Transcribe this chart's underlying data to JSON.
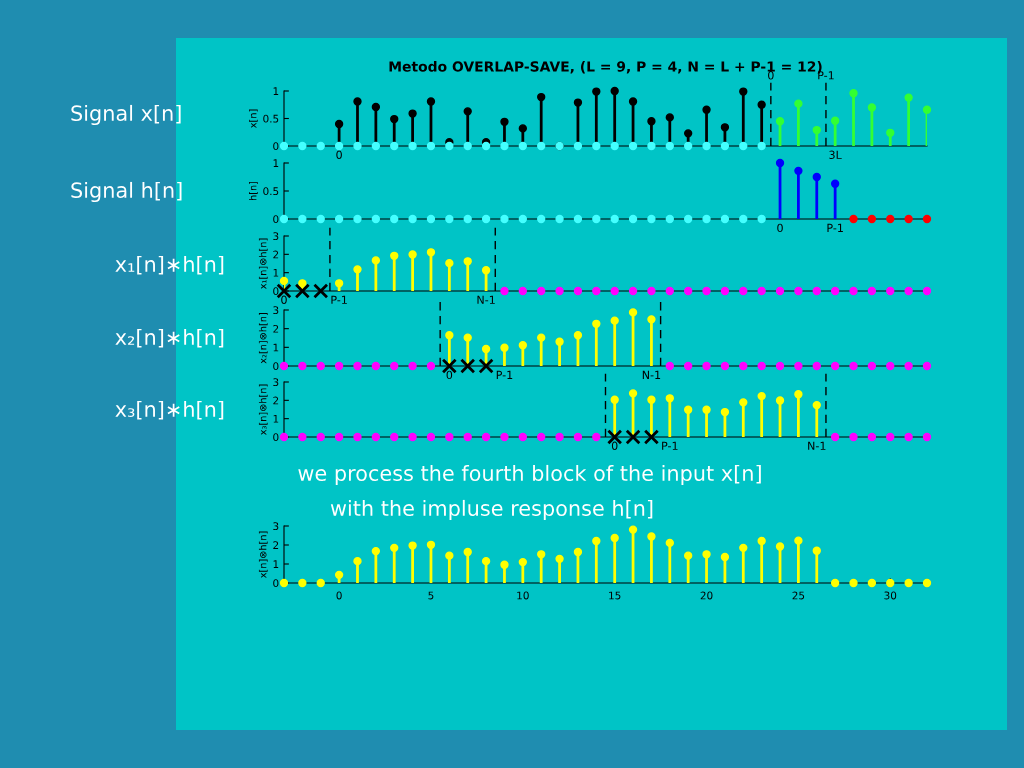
{
  "chart_data": [
    {
      "type": "lollipop",
      "title": "Metodo OVERLAP-SAVE, (L = 9, P = 4, N = L + P-1 = 12)",
      "ylabel": "x[n]",
      "xlim": [
        -3,
        32
      ],
      "ylim": [
        0,
        1
      ],
      "yticks": [
        0,
        0.5,
        1
      ],
      "tick_labels": "y",
      "marker": "circle",
      "series": [
        {
          "color": "#000000",
          "x": [
            0,
            1,
            2,
            3,
            4,
            5,
            6,
            7,
            8,
            9,
            10,
            11,
            12,
            13,
            14,
            15,
            16,
            17,
            18,
            19,
            20,
            21,
            22,
            23
          ],
          "values": [
            0.4,
            0.81,
            0.71,
            0.49,
            0.59,
            0.81,
            0.07,
            0.63,
            0.07,
            0.44,
            0.32,
            0.89,
            0,
            0.79,
            0.99,
            1.0,
            0.81,
            0.45,
            0.52,
            0.23,
            0.66,
            0.34,
            0.99,
            0.75
          ]
        },
        {
          "color": "#33ff33",
          "x": [
            24,
            25,
            26,
            27,
            28,
            29,
            30,
            31,
            32
          ],
          "values": [
            0.45,
            0.77,
            0.29,
            0.46,
            0.96,
            0.7,
            0.24,
            0.88,
            0.66
          ]
        },
        {
          "color": "#44ffff",
          "x": [
            -3,
            -2,
            -1,
            0,
            1,
            2,
            3,
            4,
            5,
            6,
            7,
            8,
            9,
            10,
            11,
            12,
            13,
            14,
            15,
            16,
            17,
            18,
            19,
            20,
            21,
            22,
            23
          ],
          "values": [
            0,
            0,
            0,
            0,
            0,
            0,
            0,
            0,
            0,
            0,
            0,
            0,
            0,
            0,
            0,
            0,
            0,
            0,
            0,
            0,
            0,
            0,
            0,
            0,
            0,
            0,
            0
          ]
        }
      ],
      "ref_lines": [
        {
          "axis": "x",
          "value": 23.5,
          "color": "#000000",
          "line_style": "dashed"
        },
        {
          "axis": "x",
          "value": 26.5,
          "color": "#000000",
          "line_style": "dashed"
        }
      ],
      "annotations": [
        "Signal x[n]",
        "0",
        "P-1",
        "0",
        "3L"
      ]
    },
    {
      "type": "lollipop",
      "ylabel": "h[n]",
      "xlim": [
        -3,
        32
      ],
      "ylim": [
        0,
        1
      ],
      "yticks": [
        0,
        0.5,
        1
      ],
      "tick_labels": "y",
      "marker": "circle",
      "series": [
        {
          "color": "#44ffff",
          "x": [
            -3,
            -2,
            -1,
            0,
            1,
            2,
            3,
            4,
            5,
            6,
            7,
            8,
            9,
            10,
            11,
            12,
            13,
            14,
            15,
            16,
            17,
            18,
            19,
            20,
            21,
            22,
            23
          ],
          "values": [
            0,
            0,
            0,
            0,
            0,
            0,
            0,
            0,
            0,
            0,
            0,
            0,
            0,
            0,
            0,
            0,
            0,
            0,
            0,
            0,
            0,
            0,
            0,
            0,
            0,
            0,
            0
          ]
        },
        {
          "color": "#0000ff",
          "x": [
            24,
            25,
            26,
            27
          ],
          "values": [
            1.0,
            0.86,
            0.75,
            0.63
          ]
        },
        {
          "color": "#ff0000",
          "x": [
            28,
            29,
            30,
            31,
            32
          ],
          "values": [
            0,
            0,
            0,
            0,
            0
          ]
        }
      ],
      "annotations": [
        "Signal h[n]",
        "0",
        "P-1"
      ]
    },
    {
      "type": "lollipop",
      "ylabel": "x₁[n]⊗h[n]",
      "xlim": [
        -3,
        32
      ],
      "ylim": [
        0,
        3
      ],
      "yticks": [
        0,
        1,
        2,
        3
      ],
      "tick_labels": "y",
      "marker": "circle",
      "series": [
        {
          "color": "#ffff00",
          "x": [
            -3,
            -2,
            0,
            1,
            2,
            3,
            4,
            5,
            6,
            7,
            8
          ],
          "values": [
            0.55,
            0.42,
            0.42,
            1.18,
            1.67,
            1.92,
            1.99,
            2.11,
            1.52,
            1.62,
            1.13
          ]
        },
        {
          "color": "#ff00ff",
          "x": [
            9,
            10,
            11,
            12,
            13,
            14,
            15,
            16,
            17,
            18,
            19,
            20,
            21,
            22,
            23,
            24,
            25,
            26,
            27,
            28,
            29,
            30,
            31,
            32
          ],
          "values": [
            0,
            0,
            0,
            0,
            0,
            0,
            0,
            0,
            0,
            0,
            0,
            0,
            0,
            0,
            0,
            0,
            0,
            0,
            0,
            0,
            0,
            0,
            0,
            0
          ]
        },
        {
          "type": "scatter",
          "marker": "cross",
          "color": "#000000",
          "x": [
            -3,
            -2,
            -1
          ],
          "values": [
            0,
            0,
            0
          ]
        }
      ],
      "ref_lines": [
        {
          "axis": "x",
          "value": -0.5,
          "color": "#000000",
          "line_style": "dashed"
        },
        {
          "axis": "x",
          "value": 8.5,
          "color": "#000000",
          "line_style": "dashed"
        }
      ],
      "annotations": [
        "x₁[n]∗h[n]",
        "0",
        "P-1",
        "N-1"
      ]
    },
    {
      "type": "lollipop",
      "ylabel": "x₂[n]⊗h[n]",
      "xlim": [
        -3,
        32
      ],
      "ylim": [
        0,
        3
      ],
      "yticks": [
        0,
        1,
        2,
        3
      ],
      "tick_labels": "y",
      "marker": "circle",
      "series": [
        {
          "color": "#ffff00",
          "x": [
            6,
            7,
            8,
            9,
            10,
            11,
            12,
            13,
            14,
            15,
            16,
            17
          ],
          "values": [
            1.65,
            1.52,
            0.91,
            0.98,
            1.11,
            1.52,
            1.3,
            1.65,
            2.26,
            2.43,
            2.87,
            2.5
          ]
        },
        {
          "color": "#ff00ff",
          "x": [
            -3,
            -2,
            -1,
            0,
            1,
            2,
            3,
            4,
            5,
            18,
            19,
            20,
            21,
            22,
            23,
            24,
            25,
            26,
            27,
            28,
            29,
            30,
            31,
            32
          ],
          "values": [
            0,
            0,
            0,
            0,
            0,
            0,
            0,
            0,
            0,
            0,
            0,
            0,
            0,
            0,
            0,
            0,
            0,
            0,
            0,
            0,
            0,
            0,
            0,
            0
          ]
        },
        {
          "type": "scatter",
          "marker": "cross",
          "color": "#000000",
          "x": [
            6,
            7,
            8
          ],
          "values": [
            0,
            0,
            0
          ]
        }
      ],
      "ref_lines": [
        {
          "axis": "x",
          "value": 5.5,
          "color": "#000000",
          "line_style": "dashed"
        },
        {
          "axis": "x",
          "value": 17.5,
          "color": "#000000",
          "line_style": "dashed"
        }
      ],
      "annotations": [
        "x₂[n]∗h[n]",
        "0",
        "P-1",
        "N-1"
      ]
    },
    {
      "type": "lollipop",
      "ylabel": "x₃[n]⊗h[n]",
      "xlim": [
        -3,
        32
      ],
      "ylim": [
        0,
        3
      ],
      "yticks": [
        0,
        1,
        2,
        3
      ],
      "tick_labels": "y",
      "marker": "circle",
      "series": [
        {
          "color": "#ffff00",
          "x": [
            15,
            16,
            17,
            18,
            19,
            20,
            21,
            22,
            23,
            24,
            25,
            26
          ],
          "values": [
            2.03,
            2.38,
            2.03,
            2.11,
            1.49,
            1.49,
            1.36,
            1.89,
            2.23,
            1.99,
            2.33,
            1.74
          ]
        },
        {
          "color": "#ff00ff",
          "x": [
            -3,
            -2,
            -1,
            0,
            1,
            2,
            3,
            4,
            5,
            6,
            7,
            8,
            9,
            10,
            11,
            12,
            13,
            14,
            27,
            28,
            29,
            30,
            31,
            32
          ],
          "values": [
            0,
            0,
            0,
            0,
            0,
            0,
            0,
            0,
            0,
            0,
            0,
            0,
            0,
            0,
            0,
            0,
            0,
            0,
            0,
            0,
            0,
            0,
            0,
            0
          ]
        },
        {
          "type": "scatter",
          "marker": "cross",
          "color": "#000000",
          "x": [
            15,
            16,
            17
          ],
          "values": [
            0,
            0,
            0
          ]
        }
      ],
      "ref_lines": [
        {
          "axis": "x",
          "value": 14.5,
          "color": "#000000",
          "line_style": "dashed"
        },
        {
          "axis": "x",
          "value": 26.5,
          "color": "#000000",
          "line_style": "dashed"
        }
      ],
      "annotations": [
        "x₃[n]∗h[n]",
        "0",
        "P-1",
        "N-1"
      ]
    },
    {
      "type": "lollipop",
      "ylabel": "x[n]⊗h[n]",
      "xlim": [
        -3,
        32
      ],
      "xticks": [
        0,
        5,
        10,
        15,
        20,
        25,
        30
      ],
      "ylim": [
        0,
        3
      ],
      "yticks": [
        0,
        1,
        2,
        3
      ],
      "marker": "circle",
      "series": [
        {
          "color": "#ffff00",
          "x": [
            -3,
            -2,
            -1,
            0,
            1,
            2,
            3,
            4,
            5,
            6,
            7,
            8,
            9,
            10,
            11,
            12,
            13,
            14,
            15,
            16,
            17,
            18,
            19,
            20,
            21,
            22,
            23,
            24,
            25,
            26,
            27,
            28,
            29,
            30,
            31,
            32
          ],
          "values": [
            0,
            0,
            0,
            0.43,
            1.15,
            1.68,
            1.85,
            1.97,
            2.01,
            1.44,
            1.63,
            1.15,
            0.96,
            1.1,
            1.51,
            1.27,
            1.63,
            2.21,
            2.37,
            2.81,
            2.45,
            2.11,
            1.44,
            1.51,
            1.37,
            1.85,
            2.21,
            1.92,
            2.23,
            1.7,
            0,
            0,
            0,
            0,
            0,
            0
          ]
        }
      ],
      "annotations": [
        "we process the fourth block of the input x[n]",
        "with the impluse response h[n]"
      ]
    }
  ]
}
